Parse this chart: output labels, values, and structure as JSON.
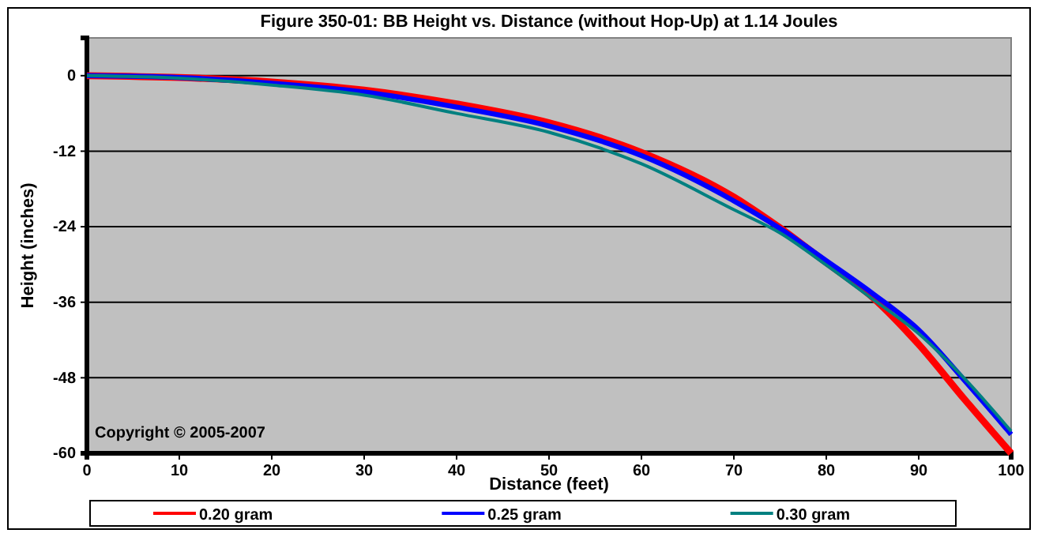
{
  "chart_data": {
    "type": "line",
    "title": "Figure 350-01:  BB Height vs. Distance (without Hop-Up) at 1.14 Joules",
    "xlabel": "Distance (feet)",
    "ylabel": "Height (inches)",
    "annotations": [
      "Copyright © 2005-2007"
    ],
    "x": [
      0,
      10,
      20,
      30,
      40,
      50,
      60,
      70,
      75,
      80,
      85,
      90,
      95,
      100
    ],
    "series": [
      {
        "name": "0.20 gram",
        "color": "#ff0000",
        "values": [
          0,
          -0.3,
          -1,
          -2.3,
          -4.5,
          -7.5,
          -12.2,
          -19.3,
          -24.2,
          -29.7,
          -35.2,
          -42.7,
          -51.5,
          -60
        ]
      },
      {
        "name": "0.25 gram",
        "color": "#0000ff",
        "values": [
          0,
          -0.3,
          -1.2,
          -2.6,
          -5,
          -8,
          -12.7,
          -19.9,
          -24.3,
          -29.4,
          -34.6,
          -40.4,
          -48.5,
          -57
        ]
      },
      {
        "name": "0.30 gram",
        "color": "#008080",
        "values": [
          0,
          -0.4,
          -1.5,
          -3.1,
          -6,
          -9,
          -14,
          -21.3,
          -25,
          -30.1,
          -35.5,
          -41,
          -48.2,
          -56.5
        ]
      }
    ],
    "xlim": [
      0,
      100
    ],
    "xticks": [
      0,
      10,
      20,
      30,
      40,
      50,
      60,
      70,
      80,
      90,
      100
    ],
    "ylim": [
      -60,
      6
    ],
    "yticks": [
      0,
      -12,
      -24,
      -36,
      -48,
      -60
    ],
    "grid": "y",
    "legend": "bottom",
    "marker": "none",
    "line_style": "solid"
  }
}
